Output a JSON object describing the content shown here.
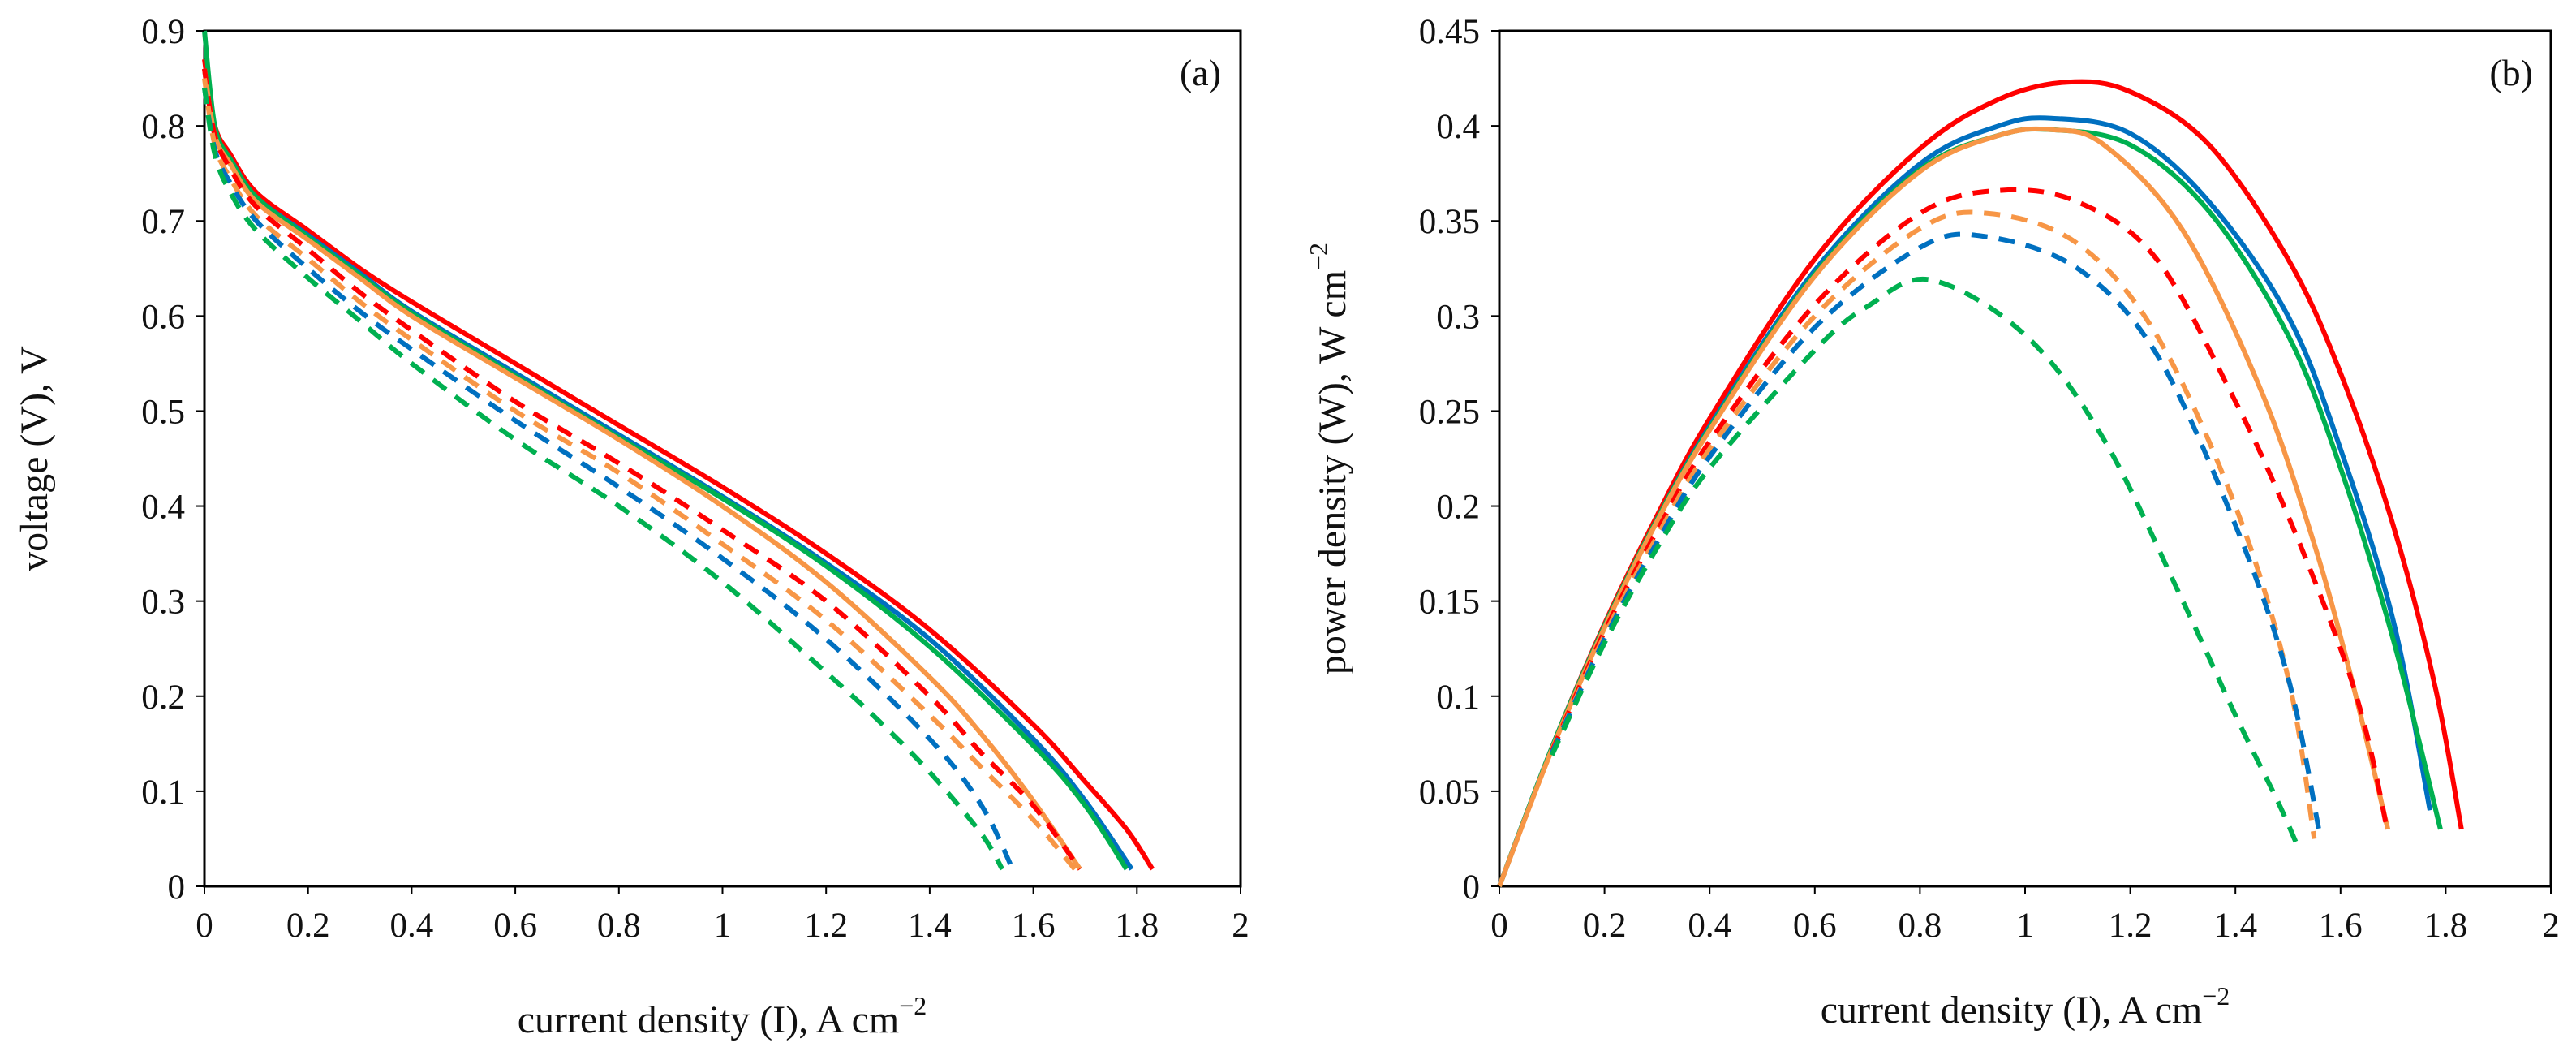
{
  "figure": {
    "panels": [
      "(a)",
      "(b)"
    ]
  },
  "chart_data": [
    {
      "type": "line",
      "panel_label": "(a)",
      "title": "",
      "xlabel": "current density (I), A cm−2",
      "xlabel_text": "current density (I), A cm",
      "xlabel_sup": "−2",
      "ylabel": "voltage (V), V",
      "xlim": [
        0,
        2
      ],
      "ylim": [
        0,
        0.9
      ],
      "xticks": [
        "0",
        "0.2",
        "0.4",
        "0.6",
        "0.8",
        "1",
        "1.2",
        "1.4",
        "1.6",
        "1.8",
        "2"
      ],
      "yticks": [
        "0",
        "0.1",
        "0.2",
        "0.3",
        "0.4",
        "0.5",
        "0.6",
        "0.7",
        "0.8",
        "0.9"
      ],
      "grid": false,
      "series": [
        {
          "name": "red solid",
          "color": "#ff0000",
          "style": "solid",
          "x": [
            0.0,
            0.02,
            0.05,
            0.1,
            0.2,
            0.3,
            0.4,
            0.6,
            0.8,
            1.0,
            1.2,
            1.4,
            1.6,
            1.7,
            1.78,
            1.83
          ],
          "y": [
            0.87,
            0.8,
            0.77,
            0.73,
            0.69,
            0.65,
            0.615,
            0.55,
            0.485,
            0.42,
            0.35,
            0.27,
            0.17,
            0.11,
            0.06,
            0.018
          ]
        },
        {
          "name": "blue solid",
          "color": "#0070c0",
          "style": "solid",
          "x": [
            0.0,
            0.02,
            0.05,
            0.1,
            0.2,
            0.3,
            0.4,
            0.6,
            0.8,
            1.0,
            1.2,
            1.4,
            1.6,
            1.7,
            1.79
          ],
          "y": [
            0.86,
            0.79,
            0.765,
            0.725,
            0.685,
            0.645,
            0.605,
            0.54,
            0.475,
            0.41,
            0.34,
            0.26,
            0.155,
            0.09,
            0.018
          ]
        },
        {
          "name": "green solid",
          "color": "#00b050",
          "style": "solid",
          "x": [
            0.0,
            0.02,
            0.05,
            0.1,
            0.2,
            0.3,
            0.4,
            0.6,
            0.8,
            1.0,
            1.2,
            1.4,
            1.6,
            1.7,
            1.78
          ],
          "y": [
            0.9,
            0.8,
            0.765,
            0.725,
            0.683,
            0.643,
            0.603,
            0.537,
            0.472,
            0.408,
            0.337,
            0.252,
            0.148,
            0.085,
            0.018
          ]
        },
        {
          "name": "orange solid",
          "color": "#f79646",
          "style": "solid",
          "x": [
            0.0,
            0.02,
            0.05,
            0.1,
            0.2,
            0.3,
            0.4,
            0.6,
            0.8,
            1.0,
            1.2,
            1.4,
            1.5,
            1.6,
            1.69
          ],
          "y": [
            0.86,
            0.79,
            0.76,
            0.72,
            0.68,
            0.64,
            0.6,
            0.535,
            0.47,
            0.4,
            0.32,
            0.22,
            0.16,
            0.09,
            0.018
          ]
        },
        {
          "name": "red dashed",
          "color": "#ff0000",
          "style": "dashed",
          "x": [
            0.0,
            0.02,
            0.05,
            0.1,
            0.2,
            0.3,
            0.4,
            0.6,
            0.8,
            1.0,
            1.2,
            1.4,
            1.5,
            1.6,
            1.69
          ],
          "y": [
            0.86,
            0.79,
            0.755,
            0.715,
            0.67,
            0.625,
            0.585,
            0.51,
            0.445,
            0.375,
            0.3,
            0.2,
            0.14,
            0.085,
            0.018
          ]
        },
        {
          "name": "orange dashed",
          "color": "#f79646",
          "style": "dashed",
          "x": [
            0.0,
            0.02,
            0.05,
            0.1,
            0.2,
            0.3,
            0.4,
            0.6,
            0.8,
            1.0,
            1.2,
            1.4,
            1.5,
            1.6,
            1.68
          ],
          "y": [
            0.85,
            0.78,
            0.745,
            0.705,
            0.66,
            0.615,
            0.575,
            0.5,
            0.435,
            0.36,
            0.28,
            0.18,
            0.125,
            0.07,
            0.018
          ]
        },
        {
          "name": "blue dashed",
          "color": "#0070c0",
          "style": "dashed",
          "x": [
            0.0,
            0.02,
            0.05,
            0.1,
            0.2,
            0.3,
            0.4,
            0.6,
            0.8,
            1.0,
            1.2,
            1.4,
            1.5,
            1.56
          ],
          "y": [
            0.84,
            0.775,
            0.74,
            0.7,
            0.65,
            0.605,
            0.565,
            0.49,
            0.42,
            0.345,
            0.26,
            0.155,
            0.085,
            0.018
          ]
        },
        {
          "name": "green dashed",
          "color": "#00b050",
          "style": "dashed",
          "x": [
            0.0,
            0.02,
            0.05,
            0.1,
            0.2,
            0.3,
            0.4,
            0.6,
            0.8,
            1.0,
            1.2,
            1.3,
            1.4,
            1.5,
            1.54
          ],
          "y": [
            0.84,
            0.77,
            0.73,
            0.69,
            0.64,
            0.595,
            0.55,
            0.47,
            0.4,
            0.32,
            0.225,
            0.175,
            0.12,
            0.055,
            0.018
          ]
        }
      ]
    },
    {
      "type": "line",
      "panel_label": "(b)",
      "title": "",
      "xlabel": "current density (I), A cm−2",
      "xlabel_text": "current density (I), A cm",
      "xlabel_sup": "−2",
      "ylabel": "power density (W), W cm−2",
      "ylabel_text": "power density (W), W cm",
      "ylabel_sup": "−2",
      "xlim": [
        0,
        2
      ],
      "ylim": [
        0,
        0.45
      ],
      "xticks": [
        "0",
        "0.2",
        "0.4",
        "0.6",
        "0.8",
        "1",
        "1.2",
        "1.4",
        "1.6",
        "1.8",
        "2"
      ],
      "yticks": [
        "0",
        "0.05",
        "0.1",
        "0.15",
        "0.2",
        "0.25",
        "0.3",
        "0.35",
        "0.4",
        "0.45"
      ],
      "grid": false,
      "series": [
        {
          "name": "red solid",
          "color": "#ff0000",
          "style": "solid",
          "x": [
            0.0,
            0.1,
            0.2,
            0.3,
            0.4,
            0.6,
            0.8,
            0.95,
            1.08,
            1.2,
            1.35,
            1.5,
            1.6,
            1.7,
            1.78,
            1.83
          ],
          "y": [
            0.0,
            0.073,
            0.138,
            0.195,
            0.246,
            0.33,
            0.388,
            0.414,
            0.423,
            0.418,
            0.39,
            0.33,
            0.27,
            0.19,
            0.105,
            0.03
          ]
        },
        {
          "name": "blue solid",
          "color": "#0070c0",
          "style": "solid",
          "x": [
            0.0,
            0.1,
            0.2,
            0.3,
            0.4,
            0.6,
            0.8,
            0.95,
            1.05,
            1.2,
            1.35,
            1.5,
            1.6,
            1.7,
            1.77
          ],
          "y": [
            0.0,
            0.073,
            0.137,
            0.193,
            0.242,
            0.324,
            0.38,
            0.4,
            0.404,
            0.396,
            0.36,
            0.3,
            0.23,
            0.14,
            0.04
          ]
        },
        {
          "name": "green solid",
          "color": "#00b050",
          "style": "solid",
          "x": [
            0.0,
            0.1,
            0.2,
            0.3,
            0.4,
            0.6,
            0.8,
            0.95,
            1.05,
            1.2,
            1.35,
            1.5,
            1.6,
            1.7,
            1.79
          ],
          "y": [
            0.0,
            0.073,
            0.137,
            0.193,
            0.241,
            0.322,
            0.377,
            0.395,
            0.398,
            0.39,
            0.355,
            0.29,
            0.22,
            0.13,
            0.03
          ]
        },
        {
          "name": "orange solid",
          "color": "#f79646",
          "style": "solid",
          "x": [
            0.0,
            0.1,
            0.2,
            0.3,
            0.4,
            0.6,
            0.8,
            0.95,
            1.05,
            1.15,
            1.3,
            1.45,
            1.55,
            1.62,
            1.69
          ],
          "y": [
            0.0,
            0.072,
            0.136,
            0.192,
            0.24,
            0.321,
            0.376,
            0.395,
            0.398,
            0.39,
            0.345,
            0.26,
            0.18,
            0.11,
            0.03
          ]
        },
        {
          "name": "red dashed",
          "color": "#ff0000",
          "style": "dashed",
          "x": [
            0.1,
            0.2,
            0.3,
            0.4,
            0.6,
            0.8,
            0.95,
            1.1,
            1.25,
            1.4,
            1.5,
            1.6,
            1.65,
            1.69
          ],
          "y": [
            0.071,
            0.134,
            0.187,
            0.234,
            0.306,
            0.354,
            0.366,
            0.36,
            0.33,
            0.255,
            0.195,
            0.125,
            0.08,
            0.028
          ]
        },
        {
          "name": "orange dashed",
          "color": "#f79646",
          "style": "dashed",
          "x": [
            0.1,
            0.2,
            0.3,
            0.4,
            0.6,
            0.8,
            0.93,
            1.1,
            1.25,
            1.4,
            1.5,
            1.55
          ],
          "y": [
            0.07,
            0.132,
            0.184,
            0.23,
            0.3,
            0.346,
            0.354,
            0.338,
            0.29,
            0.2,
            0.11,
            0.025
          ]
        },
        {
          "name": "blue dashed",
          "color": "#0070c0",
          "style": "dashed",
          "x": [
            0.1,
            0.2,
            0.3,
            0.4,
            0.6,
            0.8,
            0.92,
            1.1,
            1.25,
            1.4,
            1.5,
            1.56
          ],
          "y": [
            0.07,
            0.13,
            0.181,
            0.226,
            0.294,
            0.336,
            0.342,
            0.325,
            0.28,
            0.19,
            0.11,
            0.028
          ]
        },
        {
          "name": "green dashed",
          "color": "#00b050",
          "style": "dashed",
          "x": [
            0.1,
            0.2,
            0.3,
            0.4,
            0.6,
            0.7,
            0.82,
            1.0,
            1.15,
            1.3,
            1.4,
            1.48,
            1.52
          ],
          "y": [
            0.069,
            0.128,
            0.178,
            0.22,
            0.282,
            0.305,
            0.319,
            0.29,
            0.235,
            0.15,
            0.09,
            0.045,
            0.02
          ]
        }
      ]
    }
  ]
}
